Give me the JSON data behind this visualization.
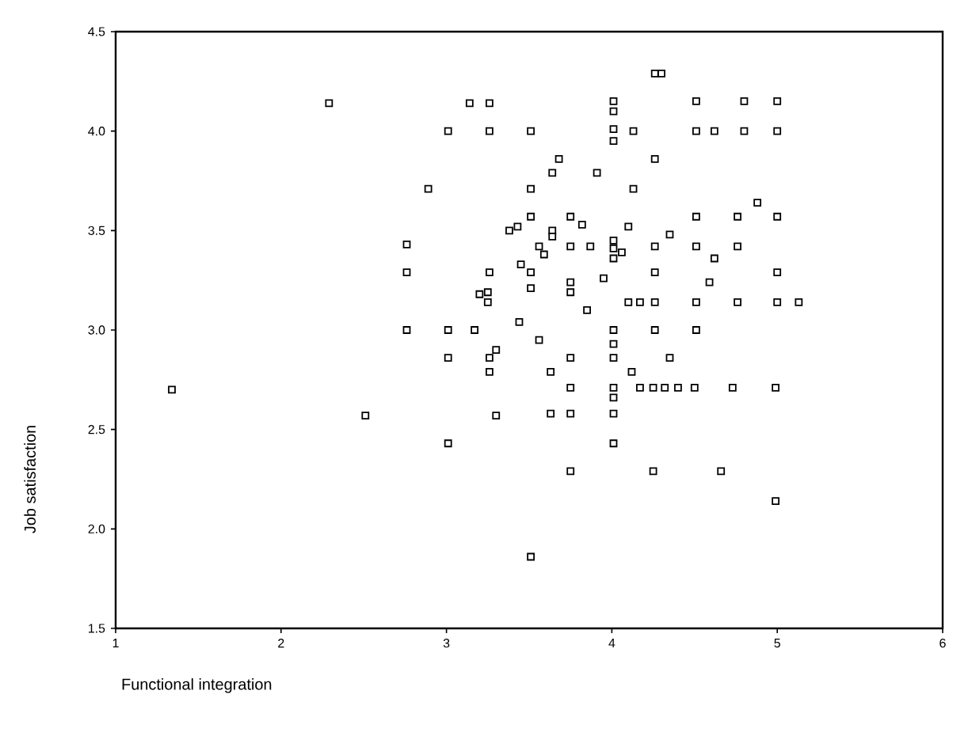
{
  "chart_data": {
    "type": "scatter",
    "xlabel": "Functional integration",
    "ylabel": "Job satisfaction",
    "xlim": [
      1,
      6
    ],
    "ylim": [
      1.5,
      4.5
    ],
    "xticks": [
      1,
      2,
      3,
      4,
      5,
      6
    ],
    "yticks": [
      {
        "value": 1.5,
        "label": "1.5"
      },
      {
        "value": 2.0,
        "label": "2.0"
      },
      {
        "value": 2.5,
        "label": "2.5"
      },
      {
        "value": 3.0,
        "label": "3.0"
      },
      {
        "value": 3.5,
        "label": "3.5"
      },
      {
        "value": 4.0,
        "label": "4.0"
      },
      {
        "value": 4.5,
        "label": "4.5"
      }
    ],
    "grid": false,
    "marker": "square",
    "series": [
      {
        "color": "#000000",
        "x": [
          2.29,
          3.14,
          3.26,
          3.01,
          3.26,
          2.89,
          2.76,
          2.76,
          3.26,
          3.38,
          3.43,
          3.45,
          3.2,
          3.25,
          3.25,
          4.26,
          4.3,
          4.01,
          4.01,
          4.51,
          4.8,
          5.0,
          3.51,
          4.01,
          4.01,
          4.13,
          4.51,
          4.62,
          4.8,
          5.0,
          3.68,
          3.64,
          4.26,
          3.91,
          3.51,
          4.13,
          4.88,
          3.51,
          3.75,
          3.82,
          4.51,
          4.76,
          5.0,
          3.64,
          3.64,
          4.1,
          4.35,
          3.56,
          3.59,
          3.75,
          3.87,
          4.01,
          4.01,
          4.06,
          4.01,
          4.26,
          4.51,
          4.76,
          4.62,
          3.51,
          3.51,
          3.75,
          3.75,
          3.95,
          4.26,
          4.59,
          5.0,
          3.85,
          4.1,
          4.17,
          4.26,
          4.51,
          4.76,
          5.0,
          5.13,
          3.44,
          3.56,
          4.01,
          4.01,
          4.26,
          4.51,
          3.75,
          4.01,
          4.35,
          3.63,
          4.12,
          3.75,
          4.01,
          4.01,
          4.17,
          4.25,
          4.32,
          4.4,
          4.5,
          4.73,
          4.99,
          3.63,
          3.75,
          4.01,
          4.01,
          3.75,
          4.25,
          4.66,
          4.99,
          3.51,
          2.76,
          3.01,
          3.17,
          3.01,
          3.26,
          3.3,
          3.26,
          1.34,
          2.51,
          3.3,
          3.01
        ],
        "values": [
          4.14,
          4.14,
          4.14,
          4.0,
          4.0,
          3.71,
          3.43,
          3.29,
          3.29,
          3.5,
          3.52,
          3.33,
          3.18,
          3.19,
          3.14,
          4.29,
          4.29,
          4.15,
          4.1,
          4.15,
          4.15,
          4.15,
          4.0,
          4.01,
          3.95,
          4.0,
          4.0,
          4.0,
          4.0,
          4.0,
          3.86,
          3.79,
          3.86,
          3.79,
          3.71,
          3.71,
          3.64,
          3.57,
          3.57,
          3.53,
          3.57,
          3.57,
          3.57,
          3.5,
          3.47,
          3.52,
          3.48,
          3.42,
          3.38,
          3.42,
          3.42,
          3.45,
          3.41,
          3.39,
          3.36,
          3.42,
          3.42,
          3.42,
          3.36,
          3.29,
          3.21,
          3.24,
          3.19,
          3.26,
          3.29,
          3.24,
          3.29,
          3.1,
          3.14,
          3.14,
          3.14,
          3.14,
          3.14,
          3.14,
          3.14,
          3.04,
          2.95,
          3.0,
          2.93,
          3.0,
          3.0,
          2.86,
          2.86,
          2.86,
          2.79,
          2.79,
          2.71,
          2.71,
          2.66,
          2.71,
          2.71,
          2.71,
          2.71,
          2.71,
          2.71,
          2.71,
          2.58,
          2.58,
          2.58,
          2.43,
          2.29,
          2.29,
          2.29,
          2.14,
          1.86,
          3.0,
          3.0,
          3.0,
          2.86,
          2.86,
          2.9,
          2.79,
          2.7,
          2.57,
          2.57,
          2.43
        ]
      }
    ]
  }
}
